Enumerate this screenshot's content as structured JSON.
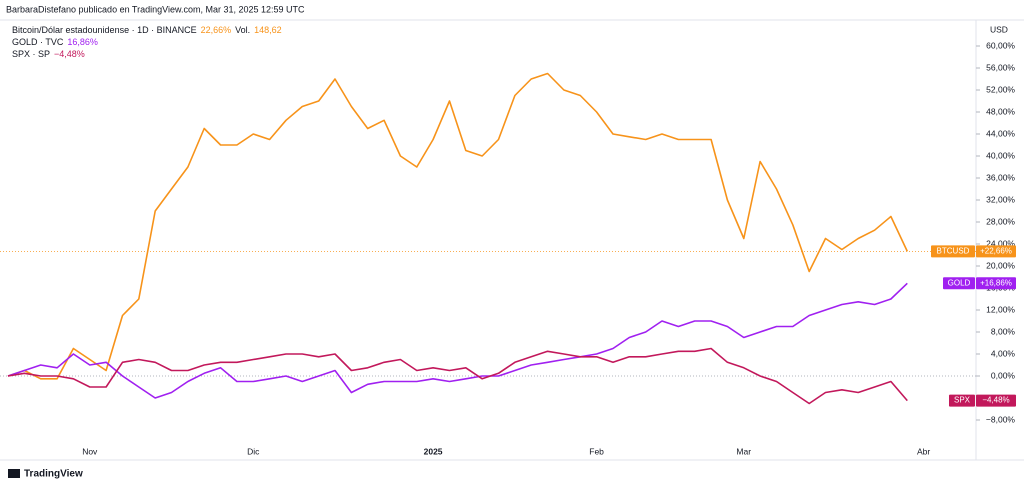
{
  "header": "BarbaraDistefano publicado en TradingView.com, Mar 31, 2025 12:59 UTC",
  "footer": "TradingView",
  "chart_data": {
    "type": "line",
    "axis_unit": "USD",
    "categories": [
      null,
      null,
      null,
      null,
      null,
      "Nov",
      null,
      null,
      null,
      null,
      null,
      null,
      null,
      null,
      null,
      "Dic",
      null,
      null,
      null,
      null,
      null,
      null,
      null,
      null,
      null,
      null,
      "2025",
      null,
      null,
      null,
      null,
      null,
      null,
      null,
      null,
      null,
      "Feb",
      null,
      null,
      null,
      null,
      null,
      null,
      null,
      null,
      "Mar",
      null,
      null,
      null,
      null,
      null,
      null,
      null,
      null,
      null,
      null,
      "Abr"
    ],
    "ylim": [
      -14,
      62
    ],
    "yticks": [
      {
        "value": 60,
        "label": "60,00%"
      },
      {
        "value": 56,
        "label": "56,00%"
      },
      {
        "value": 52,
        "label": "52,00%"
      },
      {
        "value": 48,
        "label": "48,00%"
      },
      {
        "value": 44,
        "label": "44,00%"
      },
      {
        "value": 40,
        "label": "40,00%"
      },
      {
        "value": 36,
        "label": "36,00%"
      },
      {
        "value": 32,
        "label": "32,00%"
      },
      {
        "value": 28,
        "label": "28,00%"
      },
      {
        "value": 24,
        "label": "24,00%"
      },
      {
        "value": 20,
        "label": "20,00%"
      },
      {
        "value": 16,
        "label": "16,00%"
      },
      {
        "value": 12,
        "label": "12,00%"
      },
      {
        "value": 8,
        "label": "8,00%"
      },
      {
        "value": 4,
        "label": "4,00%"
      },
      {
        "value": 0,
        "label": "0,00%"
      },
      {
        "value": -8,
        "label": "−8,00%"
      }
    ],
    "grid": false,
    "series": [
      {
        "name": "BTCUSD",
        "legend": "Bitcoin/Dólar estadounidense · 1D · BINANCE",
        "legend_change": "22,66%",
        "volume_title": "Vol.",
        "volume": "148,62",
        "last_label": "+22,66%",
        "color": "#f7931a",
        "values": [
          0,
          1,
          -0.5,
          -0.5,
          5,
          3,
          1,
          11,
          14,
          30,
          34,
          38,
          45,
          42,
          42,
          44,
          43,
          46.5,
          49,
          50,
          54,
          49,
          45,
          46.5,
          40,
          38,
          43,
          50,
          41,
          40,
          43,
          51,
          54,
          55,
          52,
          51,
          48,
          44,
          43.5,
          43,
          44,
          43,
          43,
          43,
          32,
          25,
          39,
          34,
          27.5,
          19,
          25,
          23,
          25,
          26.5,
          29,
          22.66,
          null
        ]
      },
      {
        "name": "GOLD",
        "legend": "GOLD · TVC",
        "legend_change": "16,86%",
        "last_label": "+16,86%",
        "color": "#a020f0",
        "values": [
          0,
          1,
          2,
          1.5,
          4,
          2,
          2.5,
          0,
          -2,
          -4,
          -3,
          -1,
          0.5,
          1.5,
          -1,
          -1,
          -0.5,
          0,
          -1,
          0,
          1,
          -3,
          -1.5,
          -1,
          -1,
          -1,
          -0.5,
          -1,
          -0.5,
          0,
          0,
          1,
          2,
          2.5,
          3,
          3.5,
          4,
          5,
          7,
          8,
          10,
          9,
          10,
          10,
          9,
          7,
          8,
          9,
          9,
          11,
          12,
          13,
          13.5,
          13,
          14,
          16.86,
          null
        ]
      },
      {
        "name": "SPX",
        "legend": "SPX · SP",
        "legend_change": "−4,48%",
        "last_label": "−4,48%",
        "color": "#c2185b",
        "values": [
          0,
          0.5,
          0,
          0,
          -0.5,
          -2,
          -2,
          2.5,
          3,
          2.5,
          1,
          1,
          2,
          2.5,
          2.5,
          3,
          3.5,
          4,
          4,
          3.5,
          4,
          1,
          1.5,
          2.5,
          3,
          1,
          1.5,
          1,
          1.5,
          -0.5,
          0.5,
          2.5,
          3.5,
          4.5,
          4,
          3.5,
          3.5,
          2.5,
          3.5,
          3.5,
          4,
          4.5,
          4.5,
          5,
          2.5,
          1.5,
          0,
          -1,
          -3,
          -5,
          -3,
          -2.5,
          -3,
          -2,
          -1,
          -4.48,
          null
        ]
      }
    ]
  }
}
